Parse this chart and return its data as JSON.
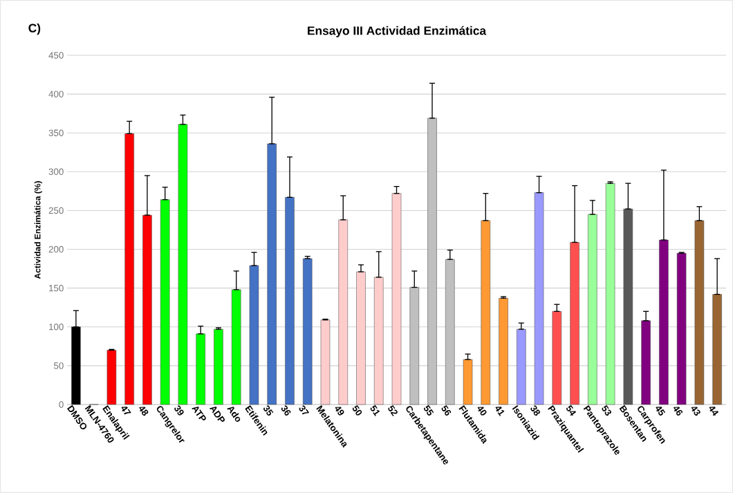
{
  "chart_data": {
    "type": "bar",
    "title": "Ensayo III Actividad Enzimática",
    "ylabel": "Actividad Enzimática (%)",
    "annotations": [
      "C)"
    ],
    "categories": [
      "DMSO",
      "MLN-4760",
      "Enalapril",
      "47",
      "48",
      "Cangrelor",
      "39",
      "ATP",
      "ADP",
      "Ado",
      "Etifenin",
      "35",
      "36",
      "37",
      "Melatonina",
      "49",
      "50",
      "51",
      "52",
      "Carbetapentane",
      "55",
      "56",
      "Flutamida",
      "40",
      "41",
      "Isoniazid",
      "38",
      "Praziquantel",
      "54",
      "Pantoprazole",
      "53",
      "Bosentan",
      "Carprofen",
      "45",
      "46",
      "43",
      "44"
    ],
    "values": [
      100,
      0,
      70,
      349,
      244,
      264,
      361,
      91,
      97,
      148,
      179,
      336,
      267,
      188,
      109,
      238,
      171,
      164,
      272,
      151,
      369,
      187,
      58,
      237,
      137,
      97,
      273,
      120,
      209,
      245,
      285,
      252,
      108,
      212,
      195,
      237,
      142
    ],
    "errors": [
      [
        100,
        121
      ],
      null,
      [
        70,
        71
      ],
      [
        349,
        365
      ],
      [
        244,
        295
      ],
      [
        264,
        280
      ],
      [
        361,
        373
      ],
      [
        91,
        101
      ],
      [
        97,
        99
      ],
      [
        148,
        172
      ],
      [
        179,
        196
      ],
      [
        336,
        396
      ],
      [
        267,
        319
      ],
      [
        188,
        191
      ],
      [
        109,
        110
      ],
      [
        238,
        269
      ],
      [
        171,
        180
      ],
      [
        164,
        197
      ],
      [
        272,
        281
      ],
      [
        151,
        172
      ],
      [
        369,
        414
      ],
      [
        187,
        199
      ],
      [
        58,
        65
      ],
      [
        237,
        272
      ],
      [
        137,
        139
      ],
      [
        97,
        105
      ],
      [
        273,
        294
      ],
      [
        120,
        129
      ],
      [
        209,
        282
      ],
      [
        245,
        263
      ],
      [
        285,
        287
      ],
      [
        252,
        285
      ],
      [
        108,
        120
      ],
      [
        212,
        302
      ],
      [
        195,
        196
      ],
      [
        237,
        255
      ],
      [
        142,
        188
      ]
    ],
    "colors": [
      "#000000",
      "#ff0000",
      "#ff0000",
      "#ff0000",
      "#ff0000",
      "#00ff00",
      "#00ff00",
      "#00ff00",
      "#00ff00",
      "#00ff00",
      "#4472c4",
      "#4472c4",
      "#4472c4",
      "#4472c4",
      "#ffcccc",
      "#ffcccc",
      "#ffcccc",
      "#ffcccc",
      "#ffcccc",
      "#bfbfbf",
      "#bfbfbf",
      "#bfbfbf",
      "#ff9933",
      "#ff9933",
      "#ff9933",
      "#9999ff",
      "#9999ff",
      "#ff5050",
      "#ff5050",
      "#99ff99",
      "#99ff99",
      "#595959",
      "#800080",
      "#800080",
      "#800080",
      "#996633",
      "#996633"
    ],
    "ylim": [
      0,
      450
    ],
    "yticks": [
      0,
      50,
      100,
      150,
      200,
      250,
      300,
      350,
      400,
      450
    ],
    "grid": "y"
  }
}
